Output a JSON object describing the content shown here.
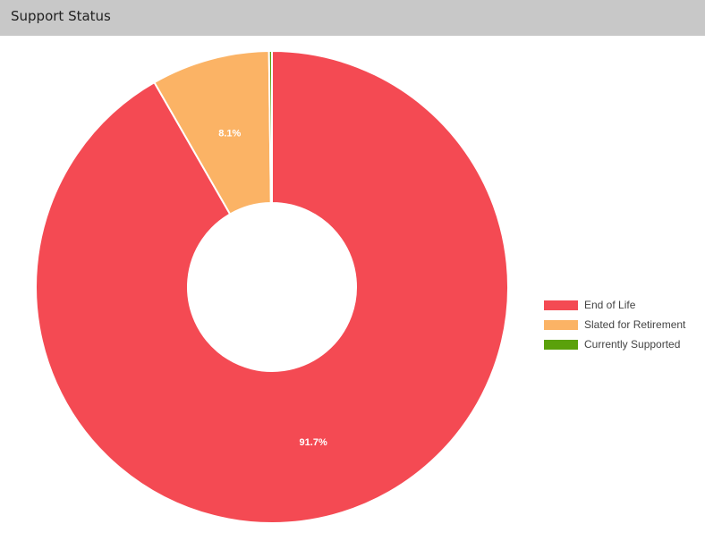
{
  "panel": {
    "title": "Support Status"
  },
  "chart_data": {
    "type": "pie",
    "variant": "donut",
    "categories": [
      "End of Life",
      "Slated for Retirement",
      "Currently Supported"
    ],
    "values": [
      91.7,
      8.1,
      0.2
    ],
    "data_labels": [
      "91.7%",
      "8.1%",
      ""
    ],
    "colors": [
      "#f44a53",
      "#fbb365",
      "#5aa10b"
    ],
    "legend_position": "right"
  }
}
